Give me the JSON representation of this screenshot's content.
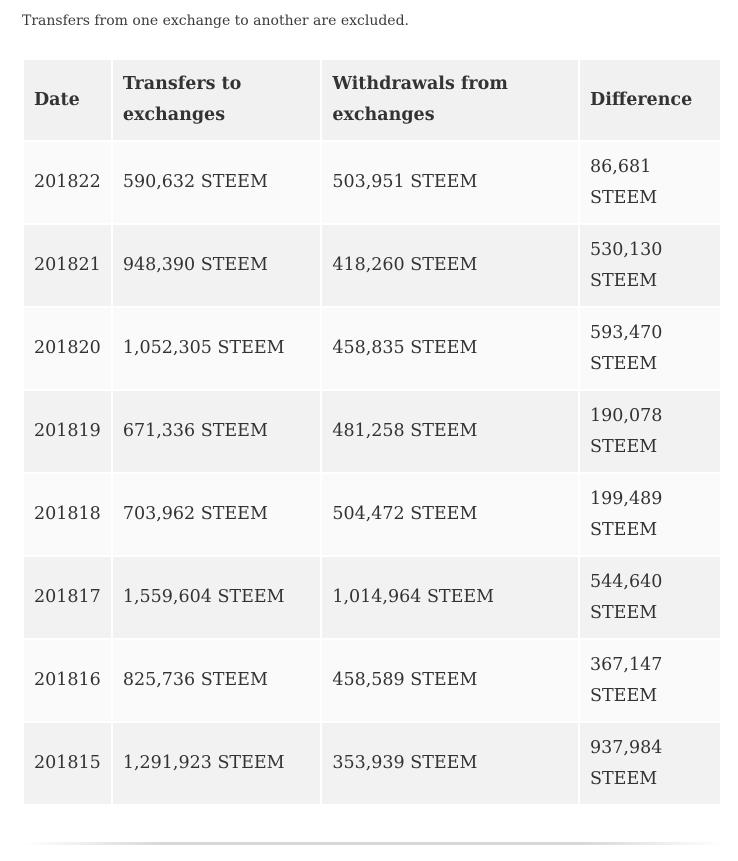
{
  "intro": "Transfers from one exchange to another are excluded.",
  "table": {
    "headers": {
      "date": "Date",
      "to": "Transfers to exchanges",
      "from": "Withdrawals from exchanges",
      "diff": "Difference"
    },
    "rows": [
      {
        "date": "201822",
        "to": "590,632 STEEM",
        "from": "503,951 STEEM",
        "diff": "86,681 STEEM"
      },
      {
        "date": "201821",
        "to": "948,390 STEEM",
        "from": "418,260 STEEM",
        "diff": "530,130 STEEM"
      },
      {
        "date": "201820",
        "to": "1,052,305 STEEM",
        "from": "458,835 STEEM",
        "diff": "593,470 STEEM"
      },
      {
        "date": "201819",
        "to": "671,336 STEEM",
        "from": "481,258 STEEM",
        "diff": "190,078 STEEM"
      },
      {
        "date": "201818",
        "to": "703,962 STEEM",
        "from": "504,472 STEEM",
        "diff": "199,489 STEEM"
      },
      {
        "date": "201817",
        "to": "1,559,604 STEEM",
        "from": "1,014,964 STEEM",
        "diff": "544,640 STEEM"
      },
      {
        "date": "201816",
        "to": "825,736 STEEM",
        "from": "458,589 STEEM",
        "diff": "367,147 STEEM"
      },
      {
        "date": "201815",
        "to": "1,291,923 STEEM",
        "from": "353,939 STEEM",
        "diff": "937,984 STEEM"
      }
    ]
  }
}
